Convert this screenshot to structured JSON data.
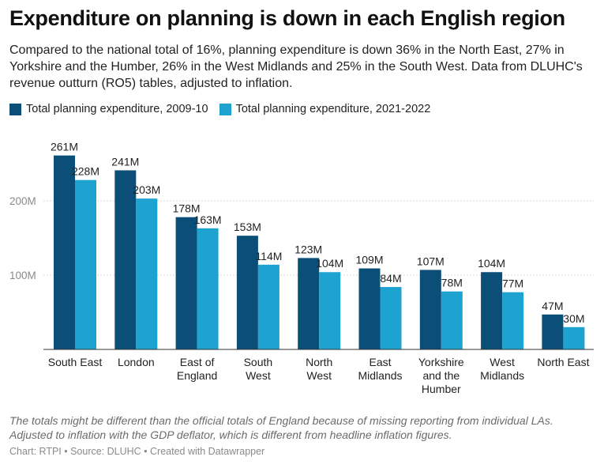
{
  "title": "Expenditure on planning is down in each English region",
  "subtitle": "Compared to the national total of 16%, planning expenditure is down 36% in the North East, 27% in Yorkshire and the Humber, 26% in the West Midlands and 25% in the South West. Data from DLUHC's revenue outturn (RO5) tables, adjusted to inflation.",
  "notes": "The totals might be different than the official totals of England because of missing reporting from individual LAs. Adjusted to inflation with the GDP deflator, which is different from headline inflation figures.",
  "credits": "Chart: RTPI • Source: DLUHC • Created with Datawrapper",
  "colors": {
    "series1": "#0b4f79",
    "series2": "#1ea3d1",
    "grid": "#d9d9d9",
    "axis": "#333333",
    "tick": "#8a8a8a"
  },
  "chart_data": {
    "type": "bar",
    "categories": [
      [
        "South East"
      ],
      [
        "London"
      ],
      [
        "East of",
        "England"
      ],
      [
        "South",
        "West"
      ],
      [
        "North",
        "West"
      ],
      [
        "East",
        "Midlands"
      ],
      [
        "Yorkshire",
        "and the",
        "Humber"
      ],
      [
        "West",
        "Midlands"
      ],
      [
        "North East"
      ]
    ],
    "series": [
      {
        "name": "Total planning expenditure, 2009-10",
        "values": [
          261,
          241,
          178,
          153,
          123,
          109,
          107,
          104,
          47
        ],
        "labels": [
          "261M",
          "241M",
          "178M",
          "153M",
          "123M",
          "109M",
          "107M",
          "104M",
          "47M"
        ]
      },
      {
        "name": "Total planning expenditure, 2021-2022",
        "values": [
          228,
          203,
          163,
          114,
          104,
          84,
          78,
          77,
          30
        ],
        "labels": [
          "228M",
          "203M",
          "163M",
          "114M",
          "104M",
          "84M",
          "78M",
          "77M",
          "30M"
        ]
      }
    ],
    "yticks": [
      100,
      200
    ],
    "ytick_labels": [
      "100M",
      "200M"
    ],
    "ylim": [
      0,
      290
    ],
    "unit": "M",
    "grid": true,
    "legend": "top-left"
  }
}
